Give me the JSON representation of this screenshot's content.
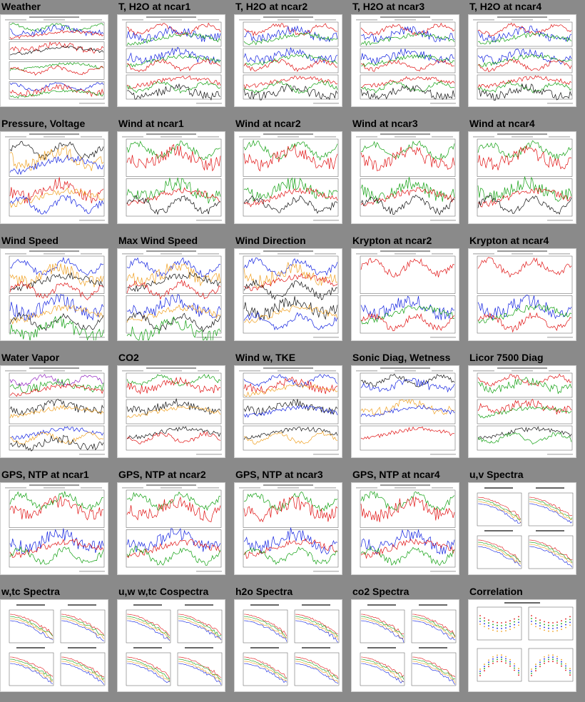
{
  "page": {
    "cells": [
      {
        "title": "Weather",
        "kind": "weather"
      },
      {
        "title": "T, H2O at ncar1",
        "kind": "th2o"
      },
      {
        "title": "T, H2O at ncar2",
        "kind": "th2o"
      },
      {
        "title": "T, H2O at ncar3",
        "kind": "th2o"
      },
      {
        "title": "T, H2O at ncar4",
        "kind": "th2o"
      },
      {
        "title": "Pressure, Voltage",
        "kind": "pressure"
      },
      {
        "title": "Wind at ncar1",
        "kind": "wind2"
      },
      {
        "title": "Wind at ncar2",
        "kind": "wind2"
      },
      {
        "title": "Wind at ncar3",
        "kind": "wind2"
      },
      {
        "title": "Wind at ncar4",
        "kind": "wind2"
      },
      {
        "title": "Wind Speed",
        "kind": "speed"
      },
      {
        "title": "Max Wind Speed",
        "kind": "speed"
      },
      {
        "title": "Wind Direction",
        "kind": "direction"
      },
      {
        "title": "Krypton at ncar2",
        "kind": "krypton"
      },
      {
        "title": "Krypton at ncar4",
        "kind": "krypton"
      },
      {
        "title": "Water Vapor",
        "kind": "vapor"
      },
      {
        "title": "CO2",
        "kind": "co2"
      },
      {
        "title": "Wind w, TKE",
        "kind": "tke"
      },
      {
        "title": "Sonic Diag, Wetness",
        "kind": "sonic"
      },
      {
        "title": "Licor 7500 Diag",
        "kind": "licor"
      },
      {
        "title": "GPS, NTP at ncar1",
        "kind": "gps"
      },
      {
        "title": "GPS, NTP at ncar2",
        "kind": "gps"
      },
      {
        "title": "GPS, NTP at ncar3",
        "kind": "gps"
      },
      {
        "title": "GPS, NTP at ncar4",
        "kind": "gps"
      },
      {
        "title": "u,v Spectra",
        "kind": "spectra4"
      },
      {
        "title": "w,tc Spectra",
        "kind": "spectra4"
      },
      {
        "title": "u,w w,tc Cospectra",
        "kind": "spectra4"
      },
      {
        "title": "h2o Spectra",
        "kind": "spectra4"
      },
      {
        "title": "co2 Spectra",
        "kind": "spectra4"
      },
      {
        "title": "Correlation",
        "kind": "corr"
      }
    ]
  },
  "colors": {
    "red": "#e01010",
    "green": "#10a010",
    "blue": "#1020e0",
    "orange": "#f0a020",
    "black": "#111111",
    "purple": "#9020c0"
  }
}
